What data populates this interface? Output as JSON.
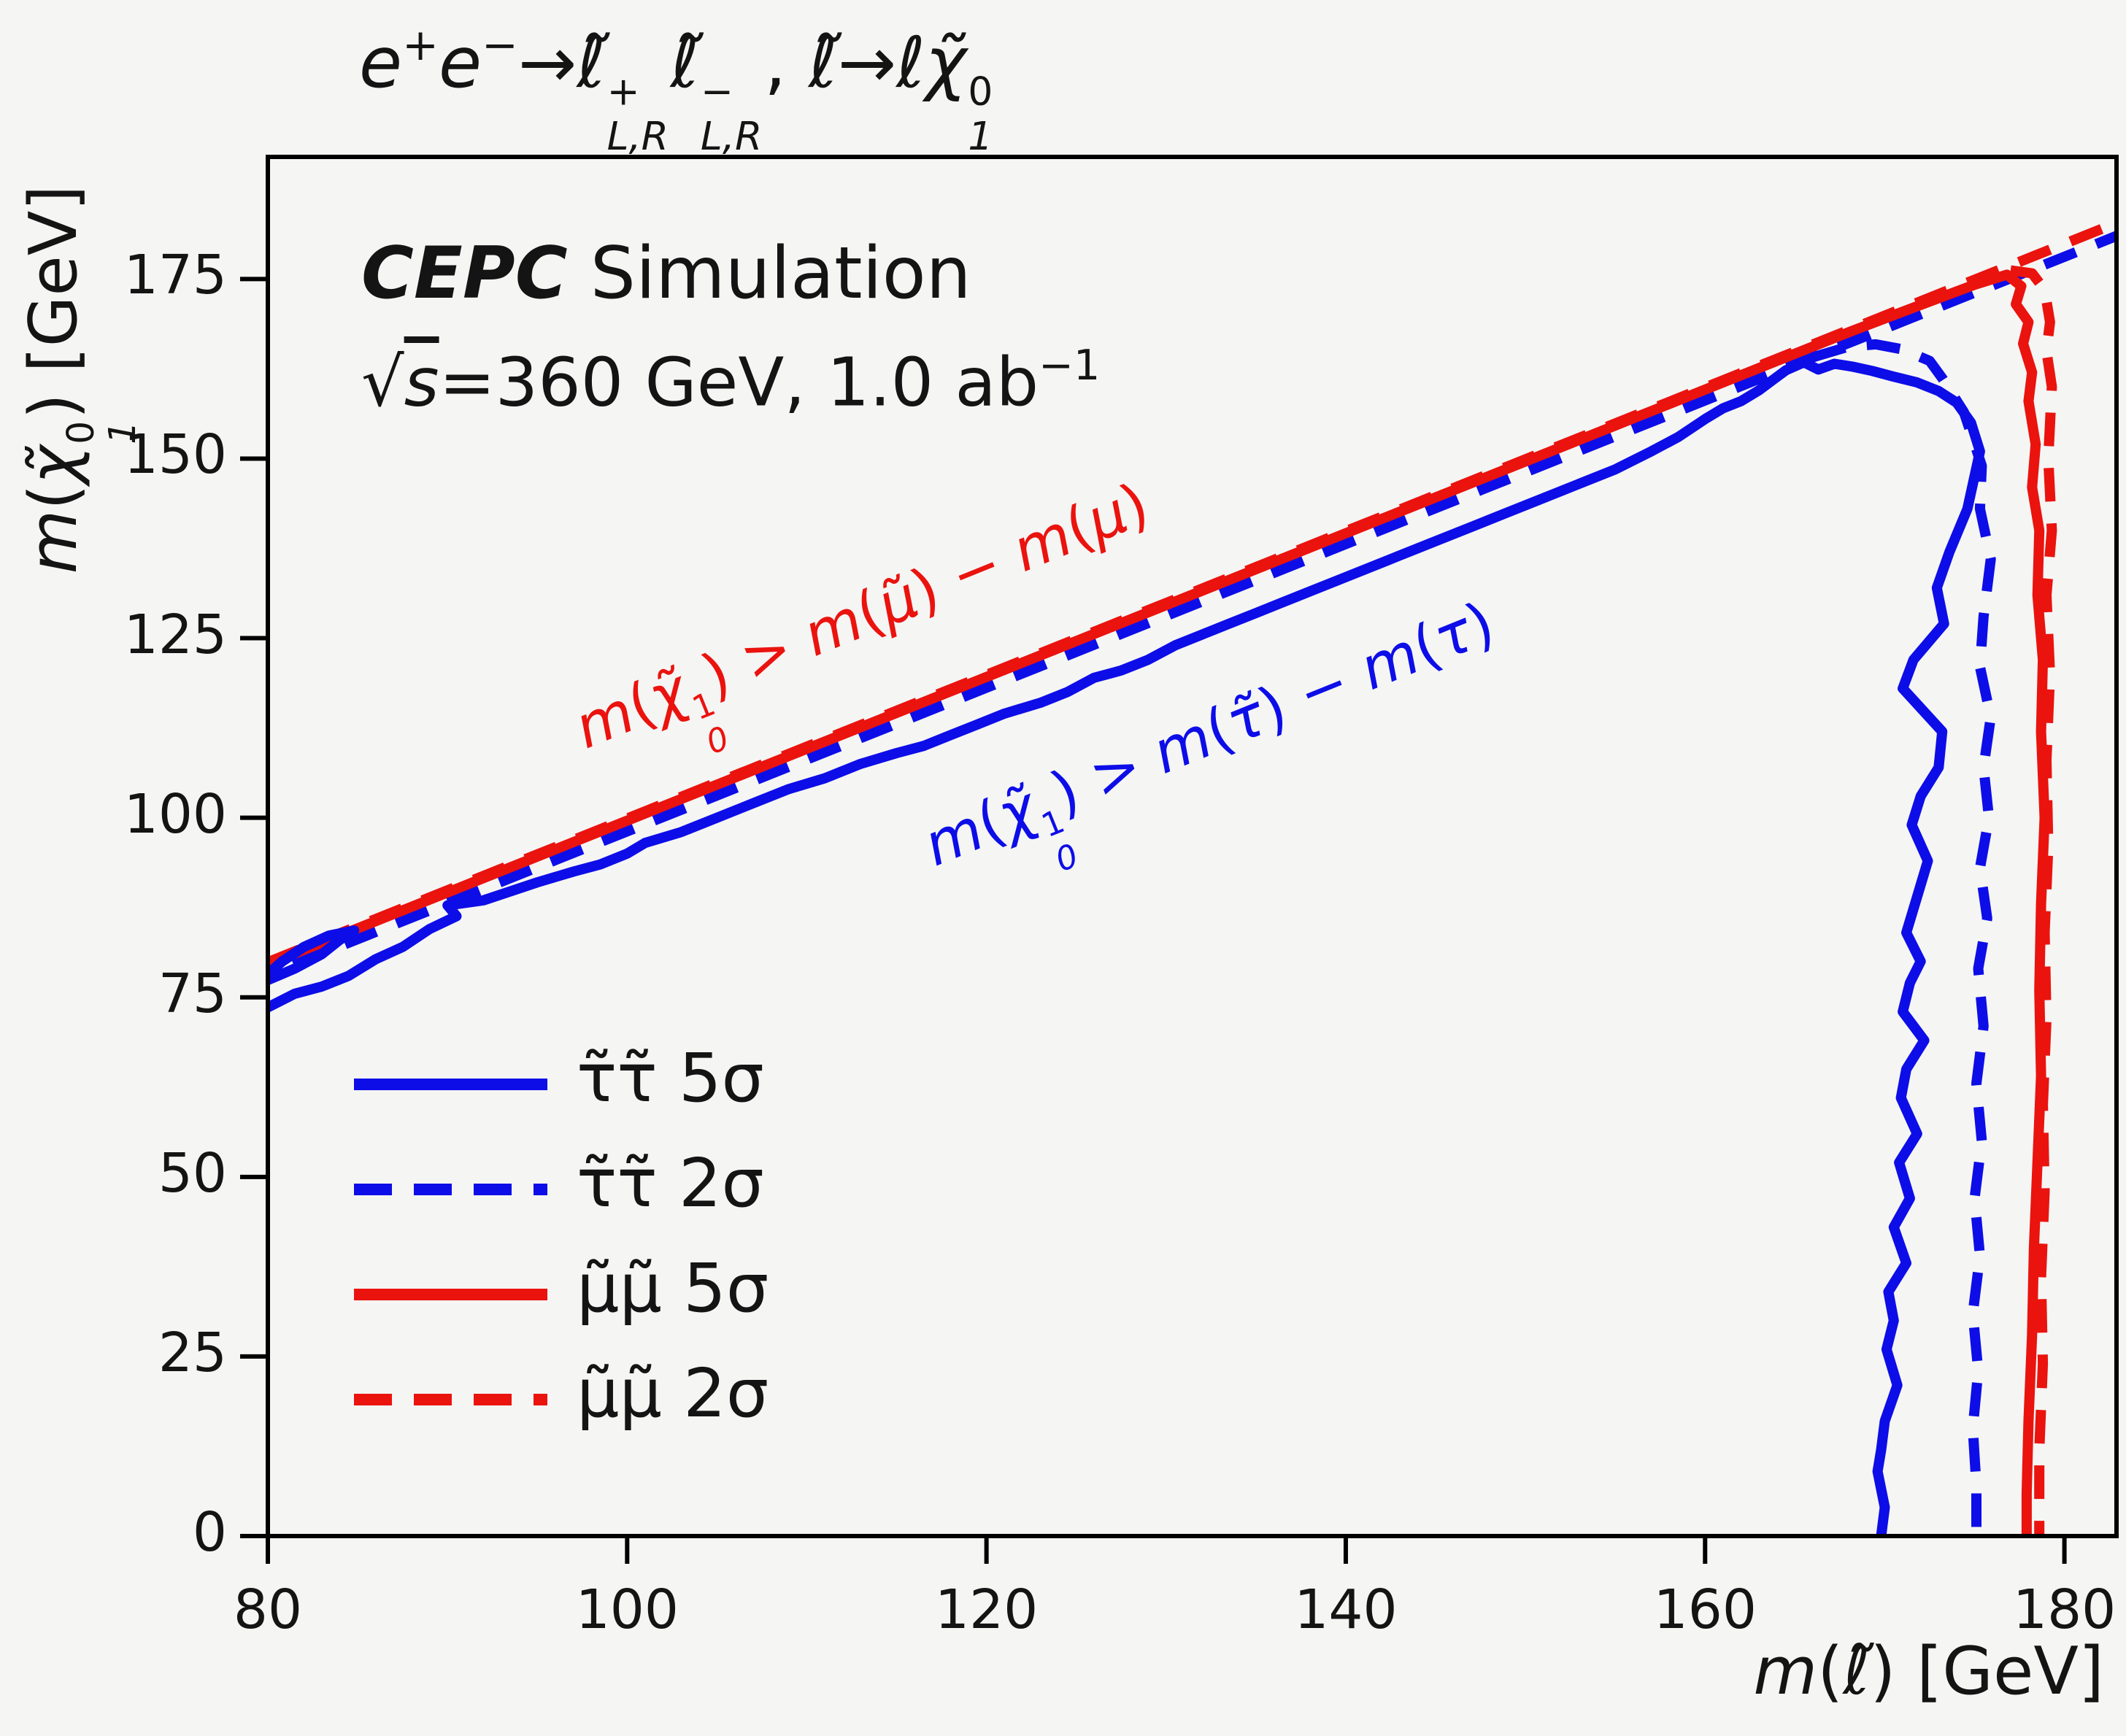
{
  "colors": {
    "blue": "#0d0de8",
    "red": "#ea130e",
    "text": "#141414",
    "axis": "#000000",
    "background": "#f5f5f4"
  },
  "header": {
    "title_text": "e⁺e⁻→ℓ̃⁺L,R ℓ̃⁻L,R, ℓ̃→ℓχ̃⁰₁",
    "title_segments": [
      {
        "t": "e",
        "i": true
      },
      {
        "sup": "+"
      },
      {
        "t": "e",
        "i": true
      },
      {
        "sup": "−"
      },
      {
        "t": "→"
      },
      {
        "t": "ℓ̃",
        "i": true
      },
      {
        "ss": [
          "+",
          "L,R"
        ]
      },
      {
        "t": "ℓ̃",
        "i": true
      },
      {
        "ss": [
          "−",
          "L,R"
        ]
      },
      {
        "t": ", "
      },
      {
        "t": "ℓ̃",
        "i": true
      },
      {
        "t": "→"
      },
      {
        "t": "ℓ",
        "i": true
      },
      {
        "t": "χ̃",
        "i": true
      },
      {
        "ss": [
          "0",
          "1"
        ]
      }
    ],
    "simulation_text": "CEPC Simulation",
    "simulation_segments": [
      {
        "t": "CEPC",
        "b": true,
        "i": true
      },
      {
        "t": " Simulation"
      }
    ],
    "lumi_text": "√s = 360 GeV, 1.0 ab⁻¹",
    "lumi_segments": [
      {
        "t": "√"
      },
      {
        "ol": "s"
      },
      {
        "t": "="
      },
      {
        "t": "360 GeV, 1.0 ab"
      },
      {
        "sup": "−1"
      }
    ]
  },
  "chart_data": {
    "type": "line",
    "title": "e⁺e⁻→ℓ̃⁺L,R ℓ̃⁻L,R, ℓ̃→ℓχ̃⁰₁",
    "xlabel": "m(ℓ̃) [GeV]",
    "ylabel": "m(χ̃⁰₁) [GeV]",
    "xlabel_segments": [
      {
        "t": "m",
        "i": true
      },
      {
        "t": "("
      },
      {
        "t": "ℓ̃",
        "i": true
      },
      {
        "t": ") [GeV]"
      }
    ],
    "ylabel_segments": [
      {
        "t": "m",
        "i": true
      },
      {
        "t": "("
      },
      {
        "t": "χ̃",
        "i": true
      },
      {
        "ss": [
          "0",
          "1"
        ]
      },
      {
        "t": ") [GeV]"
      }
    ],
    "xlim": [
      80,
      182.9
    ],
    "ylim": [
      0,
      192
    ],
    "xticks": [
      80,
      100,
      120,
      140,
      160,
      180
    ],
    "yticks": [
      0,
      25,
      50,
      75,
      100,
      125,
      150,
      175
    ],
    "grid": false,
    "legend_position": "lower left",
    "annotations": [
      {
        "id": "mu-kinematic-note",
        "text": "m(χ̃¹₀) > m(μ̃) − m(μ)",
        "color": "red",
        "rotation_deg": -22,
        "segments": [
          {
            "t": "m",
            "i": true
          },
          {
            "t": "("
          },
          {
            "t": "χ̃",
            "i": true
          },
          {
            "ss": [
              "1",
              "0"
            ]
          },
          {
            "t": ") > "
          },
          {
            "t": "m",
            "i": true
          },
          {
            "t": "("
          },
          {
            "t": "μ̃",
            "i": true
          },
          {
            "t": ") − "
          },
          {
            "t": "m",
            "i": true
          },
          {
            "t": "("
          },
          {
            "t": "μ",
            "i": true
          },
          {
            "t": ")"
          }
        ]
      },
      {
        "id": "tau-kinematic-note",
        "text": "m(χ̃¹₀) > m(τ̃) − m(τ)",
        "color": "blue",
        "rotation_deg": -22,
        "segments": [
          {
            "t": "m",
            "i": true
          },
          {
            "t": "("
          },
          {
            "t": "χ̃",
            "i": true
          },
          {
            "ss": [
              "1",
              "0"
            ]
          },
          {
            "t": ") > "
          },
          {
            "t": "m",
            "i": true
          },
          {
            "t": "("
          },
          {
            "t": "τ̃",
            "i": true
          },
          {
            "t": ") − "
          },
          {
            "t": "m",
            "i": true
          },
          {
            "t": "("
          },
          {
            "t": "τ",
            "i": true
          },
          {
            "t": ")"
          }
        ]
      }
    ],
    "series": [
      {
        "name": "smuon-boundary",
        "label": "m(χ̃¹₀) = m(μ̃) − m(μ) kinematic boundary",
        "color": "red",
        "style": "dashed",
        "in_legend": false,
        "paths": [
          [
            [
              80,
              79.9
            ],
            [
              182.9,
              182.8
            ]
          ]
        ]
      },
      {
        "name": "stau-boundary",
        "label": "m(χ̃¹₀) = m(τ̃) − m(τ) kinematic boundary",
        "color": "blue",
        "style": "dashed",
        "in_legend": false,
        "paths": [
          [
            [
              80,
              78.1
            ],
            [
              182.9,
              181.0
            ]
          ]
        ]
      },
      {
        "name": "smu-2sigma",
        "label": "μ̃μ̃ 2σ",
        "color": "red",
        "style": "dashed",
        "in_legend": true,
        "paths": [
          [
            [
              177.0,
              176.2
            ],
            [
              178.2,
              175.8
            ],
            [
              178.9,
              173.5
            ],
            [
              179.2,
              169.0
            ],
            [
              179.0,
              165.0
            ],
            [
              179.3,
              160.0
            ],
            [
              179.1,
              150.0
            ],
            [
              179.3,
              140.0
            ],
            [
              179.0,
              131.0
            ],
            [
              179.2,
              120.0
            ],
            [
              179.0,
              108.0
            ],
            [
              179.1,
              96.0
            ],
            [
              178.9,
              84.0
            ],
            [
              179.0,
              72.0
            ],
            [
              178.8,
              60.0
            ],
            [
              178.9,
              48.0
            ],
            [
              178.7,
              36.0
            ],
            [
              178.8,
              24.0
            ],
            [
              178.6,
              12.0
            ],
            [
              178.6,
              0.0
            ]
          ]
        ]
      },
      {
        "name": "smu-5sigma",
        "label": "μ̃μ̃ 5σ",
        "color": "red",
        "style": "solid",
        "in_legend": true,
        "paths": [
          [
            [
              80,
              79.6
            ],
            [
              90,
              89.6
            ],
            [
              100,
              99.6
            ],
            [
              110,
              109.6
            ],
            [
              120,
              119.6
            ],
            [
              130,
              129.6
            ],
            [
              140,
              139.6
            ],
            [
              150,
              149.6
            ],
            [
              160,
              159.6
            ],
            [
              168,
              167.6
            ],
            [
              172,
              171.4
            ],
            [
              175,
              174.2
            ],
            [
              176.8,
              175.6
            ],
            [
              177.6,
              174.0
            ],
            [
              177.3,
              171.5
            ],
            [
              178.0,
              169.0
            ],
            [
              177.7,
              166.0
            ],
            [
              178.2,
              162.0
            ],
            [
              178.0,
              158.0
            ],
            [
              178.4,
              152.0
            ],
            [
              178.2,
              146.0
            ],
            [
              178.6,
              140.0
            ],
            [
              178.5,
              131.0
            ],
            [
              178.8,
              122.0
            ],
            [
              178.7,
              112.0
            ],
            [
              178.9,
              100.0
            ],
            [
              178.7,
              88.0
            ],
            [
              178.6,
              76.0
            ],
            [
              178.7,
              64.0
            ],
            [
              178.5,
              52.0
            ],
            [
              178.3,
              40.0
            ],
            [
              178.2,
              28.0
            ],
            [
              178.0,
              16.0
            ],
            [
              177.9,
              6.0
            ],
            [
              177.9,
              0.0
            ]
          ]
        ]
      },
      {
        "name": "stau-2sigma",
        "label": "τ̃τ̃ 2σ",
        "color": "blue",
        "style": "dashed",
        "in_legend": true,
        "paths": [
          [
            [
              166.0,
              164.1
            ],
            [
              168.0,
              165.6
            ],
            [
              169.5,
              165.9
            ],
            [
              171.0,
              165.2
            ],
            [
              172.5,
              163.6
            ],
            [
              173.2,
              161.2
            ],
            [
              174.4,
              156.5
            ],
            [
              175.4,
              149.0
            ],
            [
              175.3,
              143.0
            ],
            [
              175.9,
              136.0
            ],
            [
              175.5,
              128.0
            ],
            [
              175.3,
              121.0
            ],
            [
              175.9,
              114.0
            ],
            [
              175.5,
              107.0
            ],
            [
              175.8,
              100.0
            ],
            [
              175.3,
              93.0
            ],
            [
              175.7,
              86.0
            ],
            [
              175.2,
              79.0
            ],
            [
              175.5,
              71.0
            ],
            [
              175.1,
              63.0
            ],
            [
              175.4,
              55.0
            ],
            [
              175.0,
              47.0
            ],
            [
              175.3,
              39.0
            ],
            [
              174.9,
              31.0
            ],
            [
              175.2,
              23.0
            ],
            [
              174.9,
              15.0
            ],
            [
              175.1,
              7.0
            ],
            [
              175.1,
              0.0
            ]
          ]
        ]
      },
      {
        "name": "stau-5sigma",
        "label": "τ̃τ̃ 5σ",
        "color": "blue",
        "style": "solid",
        "in_legend": true,
        "paths": [
          [
            [
              80,
              73.6
            ],
            [
              81.5,
              75.5
            ],
            [
              83,
              76.5
            ],
            [
              84.5,
              78.0
            ],
            [
              86,
              80.3
            ],
            [
              87.5,
              82.0
            ],
            [
              89,
              84.5
            ],
            [
              90.5,
              86.3
            ],
            [
              90,
              87.8
            ],
            [
              92,
              88.5
            ],
            [
              95,
              91.0
            ],
            [
              97,
              92.5
            ],
            [
              98.5,
              93.5
            ],
            [
              100,
              95.0
            ],
            [
              101,
              96.5
            ],
            [
              103,
              98.0
            ],
            [
              105,
              100.0
            ],
            [
              107,
              102.0
            ],
            [
              109,
              104.0
            ],
            [
              111,
              105.5
            ],
            [
              113,
              107.5
            ],
            [
              115,
              109.0
            ],
            [
              116.5,
              110.0
            ],
            [
              118,
              111.5
            ],
            [
              119.5,
              113.0
            ],
            [
              121,
              114.5
            ],
            [
              123,
              116.0
            ],
            [
              124.5,
              117.5
            ],
            [
              126,
              119.5
            ],
            [
              127.5,
              120.5
            ],
            [
              129,
              122.0
            ],
            [
              130.5,
              124.0
            ],
            [
              132,
              125.5
            ],
            [
              133.5,
              127.0
            ],
            [
              135,
              128.5
            ],
            [
              136.5,
              130.0
            ],
            [
              138,
              131.5
            ],
            [
              139.5,
              133.0
            ],
            [
              141,
              134.5
            ],
            [
              143,
              136.5
            ],
            [
              145,
              138.5
            ],
            [
              147,
              140.5
            ],
            [
              149,
              142.5
            ],
            [
              151,
              144.5
            ],
            [
              153,
              146.5
            ],
            [
              155,
              148.5
            ],
            [
              157,
              151.0
            ],
            [
              158.5,
              153.0
            ],
            [
              160,
              155.5
            ],
            [
              161,
              157.0
            ],
            [
              162,
              158.0
            ],
            [
              163,
              159.5
            ],
            [
              163.8,
              161.0
            ],
            [
              164.5,
              162.3
            ],
            [
              165.5,
              163.4
            ],
            [
              166.3,
              162.4
            ],
            [
              167.2,
              163.2
            ],
            [
              168.2,
              162.8
            ],
            [
              169.3,
              162.2
            ],
            [
              170.5,
              161.4
            ],
            [
              171.8,
              160.6
            ],
            [
              173,
              159.4
            ],
            [
              174,
              157.8
            ],
            [
              174.8,
              155.0
            ],
            [
              175.3,
              151.0
            ],
            [
              174.6,
              143.0
            ],
            [
              173.6,
              137.0
            ],
            [
              172.9,
              132.0
            ],
            [
              173.3,
              127.0
            ],
            [
              171.6,
              122.0
            ],
            [
              171.0,
              118.0
            ],
            [
              173.2,
              112.0
            ],
            [
              173.0,
              107.0
            ],
            [
              172.0,
              103.0
            ],
            [
              171.5,
              99.0
            ],
            [
              172.4,
              94.0
            ],
            [
              171.8,
              89.0
            ],
            [
              171.2,
              84.0
            ],
            [
              172.0,
              80.0
            ],
            [
              171.4,
              77.0
            ],
            [
              171.0,
              73.0
            ],
            [
              172.2,
              69.0
            ],
            [
              171.2,
              65.0
            ],
            [
              170.9,
              61.0
            ],
            [
              171.8,
              56.0
            ],
            [
              170.8,
              52.0
            ],
            [
              171.4,
              47.0
            ],
            [
              170.5,
              43.0
            ],
            [
              171.2,
              38.0
            ],
            [
              170.2,
              34.0
            ],
            [
              170.5,
              30.0
            ],
            [
              170.1,
              26.0
            ],
            [
              170.7,
              21.0
            ],
            [
              170.0,
              16.0
            ],
            [
              169.8,
              12.0
            ],
            [
              169.6,
              9.0
            ],
            [
              170.0,
              4.0
            ],
            [
              169.8,
              0.0
            ]
          ],
          [
            [
              80,
              77.4
            ],
            [
              81.5,
              79.0
            ],
            [
              83,
              81.0
            ],
            [
              84,
              83.0
            ],
            [
              84.8,
              84.3
            ],
            [
              83.4,
              83.6
            ],
            [
              82,
              82.0
            ],
            [
              80.8,
              80.0
            ],
            [
              80,
              78.2
            ]
          ]
        ]
      }
    ],
    "legend": {
      "entries": [
        {
          "label": "τ̃τ̃ 5σ",
          "color": "blue",
          "style": "solid"
        },
        {
          "label": "τ̃τ̃ 2σ",
          "color": "blue",
          "style": "dashed"
        },
        {
          "label": "μ̃μ̃ 5σ",
          "color": "red",
          "style": "solid"
        },
        {
          "label": "μ̃μ̃ 2σ",
          "color": "red",
          "style": "dashed"
        }
      ]
    }
  }
}
